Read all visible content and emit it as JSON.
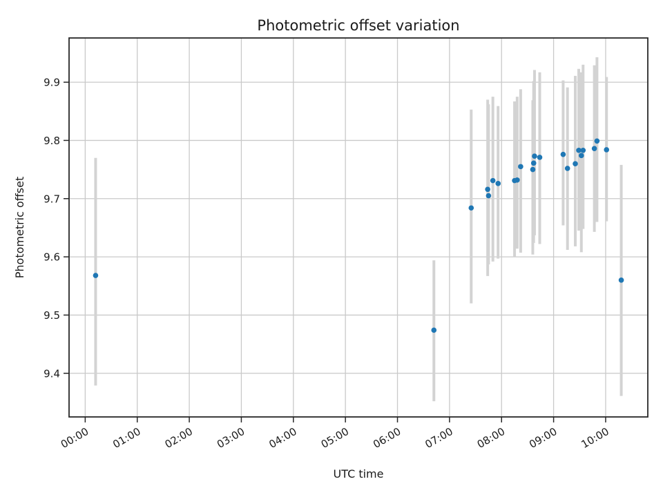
{
  "chart_data": {
    "type": "scatter",
    "title": "Photometric offset variation",
    "xlabel": "UTC time",
    "ylabel": "Photometric offset",
    "x_tick_labels": [
      "00:00",
      "01:00",
      "02:00",
      "03:00",
      "04:00",
      "05:00",
      "06:00",
      "07:00",
      "08:00",
      "09:00",
      "10:00"
    ],
    "y_ticks": [
      9.4,
      9.5,
      9.6,
      9.7,
      9.8,
      9.9
    ],
    "xlim_hours": [
      -0.31,
      10.81
    ],
    "ylim": [
      9.325,
      9.976
    ],
    "grid": true,
    "legend": "none",
    "marker_color": "#1f77b4",
    "errorbar_color": "#d3d3d3",
    "grid_color": "#c9c9c9",
    "points": [
      {
        "time": "00:12",
        "y": 9.568,
        "y_lo": 9.379,
        "y_hi": 9.77
      },
      {
        "time": "06:42",
        "y": 9.474,
        "y_lo": 9.352,
        "y_hi": 9.594
      },
      {
        "time": "07:25",
        "y": 9.684,
        "y_lo": 9.52,
        "y_hi": 9.853
      },
      {
        "time": "07:44",
        "y": 9.716,
        "y_lo": 9.567,
        "y_hi": 9.87
      },
      {
        "time": "07:45",
        "y": 9.705,
        "y_lo": 9.587,
        "y_hi": 9.862
      },
      {
        "time": "07:50",
        "y": 9.731,
        "y_lo": 9.592,
        "y_hi": 9.875
      },
      {
        "time": "07:56",
        "y": 9.726,
        "y_lo": 9.597,
        "y_hi": 9.859
      },
      {
        "time": "08:15",
        "y": 9.731,
        "y_lo": 9.6,
        "y_hi": 9.867
      },
      {
        "time": "08:18",
        "y": 9.732,
        "y_lo": 9.614,
        "y_hi": 9.875
      },
      {
        "time": "08:22",
        "y": 9.755,
        "y_lo": 9.607,
        "y_hi": 9.888
      },
      {
        "time": "08:36",
        "y": 9.75,
        "y_lo": 9.604,
        "y_hi": 9.869
      },
      {
        "time": "08:37",
        "y": 9.761,
        "y_lo": 9.624,
        "y_hi": 9.902
      },
      {
        "time": "08:38",
        "y": 9.773,
        "y_lo": 9.637,
        "y_hi": 9.921
      },
      {
        "time": "08:44",
        "y": 9.771,
        "y_lo": 9.622,
        "y_hi": 9.917
      },
      {
        "time": "09:11",
        "y": 9.776,
        "y_lo": 9.654,
        "y_hi": 9.903
      },
      {
        "time": "09:16",
        "y": 9.752,
        "y_lo": 9.612,
        "y_hi": 9.891
      },
      {
        "time": "09:25",
        "y": 9.76,
        "y_lo": 9.618,
        "y_hi": 9.911
      },
      {
        "time": "09:29",
        "y": 9.783,
        "y_lo": 9.645,
        "y_hi": 9.923
      },
      {
        "time": "09:32",
        "y": 9.774,
        "y_lo": 9.608,
        "y_hi": 9.917
      },
      {
        "time": "09:34",
        "y": 9.783,
        "y_lo": 9.648,
        "y_hi": 9.93
      },
      {
        "time": "09:47",
        "y": 9.786,
        "y_lo": 9.643,
        "y_hi": 9.929
      },
      {
        "time": "09:50",
        "y": 9.799,
        "y_lo": 9.66,
        "y_hi": 9.943
      },
      {
        "time": "10:01",
        "y": 9.784,
        "y_lo": 9.661,
        "y_hi": 9.909
      },
      {
        "time": "10:18",
        "y": 9.56,
        "y_lo": 9.361,
        "y_hi": 9.758
      }
    ]
  }
}
